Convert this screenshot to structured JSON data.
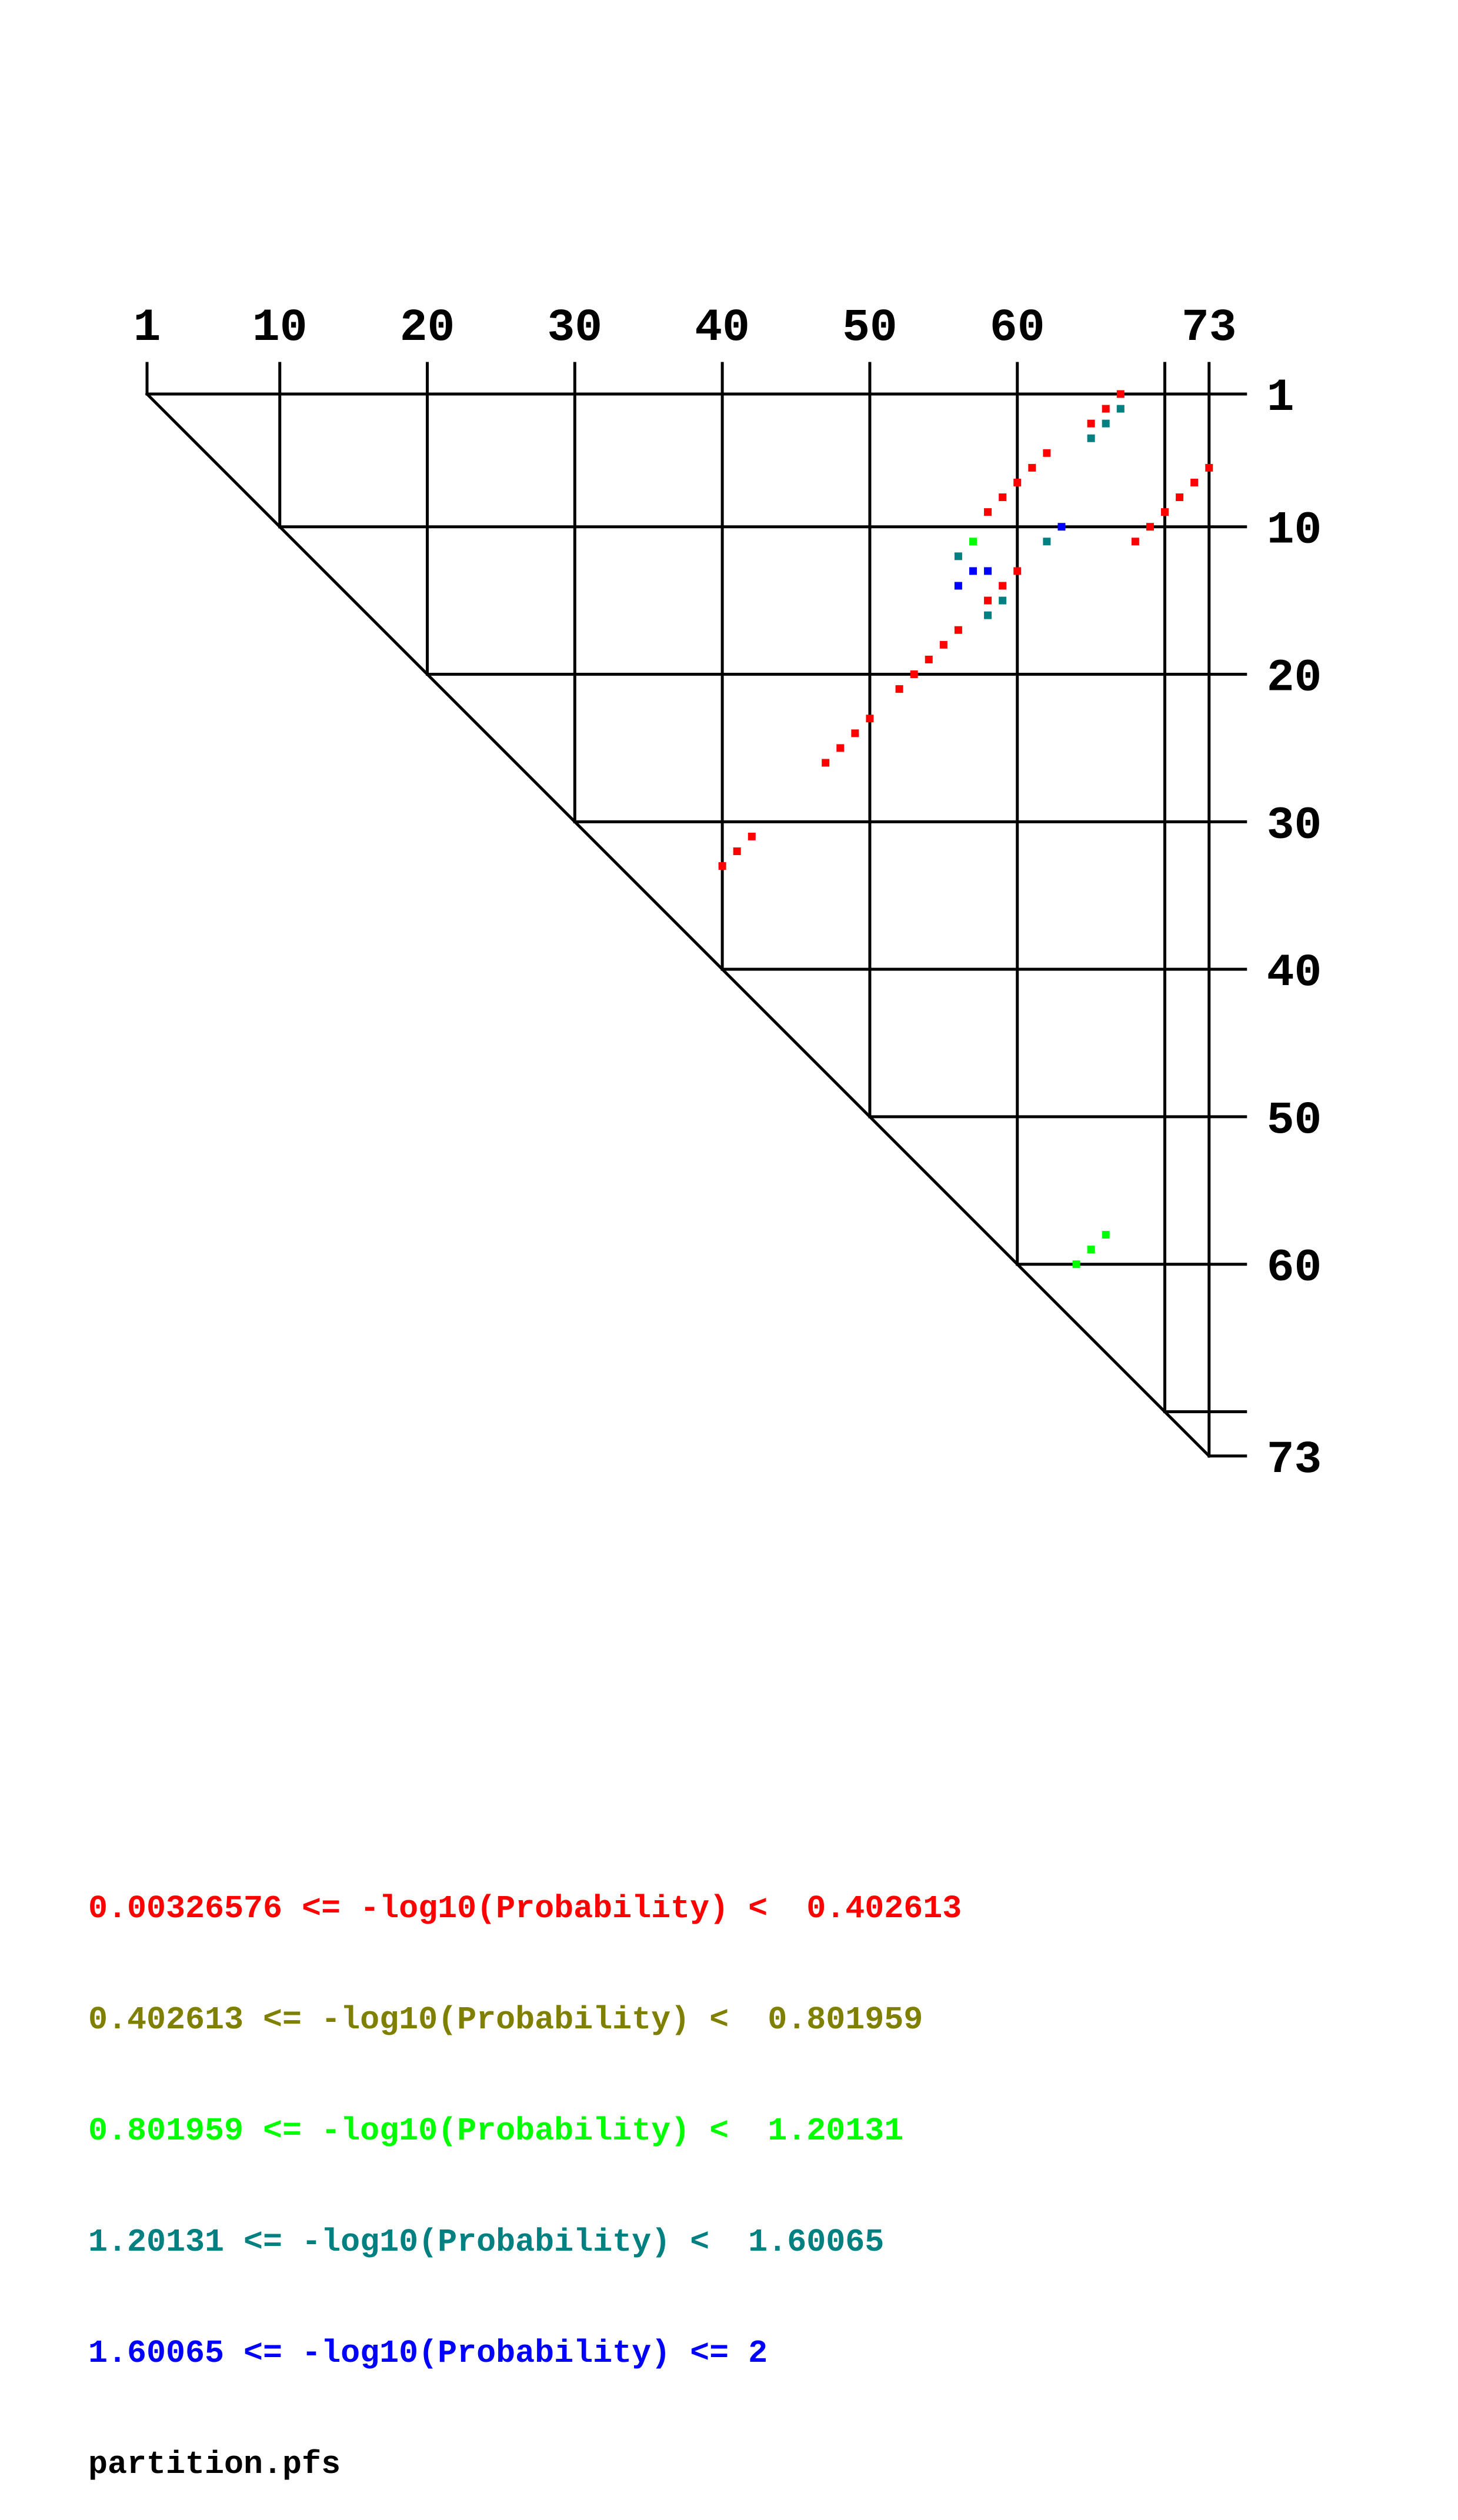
{
  "chart_data": {
    "type": "heatmap",
    "title": "",
    "sequence_length": 73,
    "x_axis": {
      "tick_labels": [
        "1",
        "10",
        "20",
        "30",
        "40",
        "50",
        "60",
        "73"
      ],
      "ticks": [
        1,
        10,
        20,
        30,
        40,
        50,
        60,
        70,
        73
      ]
    },
    "y_axis": {
      "tick_labels": [
        "1",
        "10",
        "20",
        "30",
        "40",
        "50",
        "60",
        "73"
      ],
      "ticks": [
        1,
        10,
        20,
        30,
        40,
        50,
        60,
        70,
        73
      ]
    },
    "legend": [
      {
        "label": "0.00326576 <= -log10(Probability) <  0.402613",
        "color": "#ff0000"
      },
      {
        "label": "0.402613 <= -log10(Probability) <  0.801959",
        "color": "#808000"
      },
      {
        "label": "0.801959 <= -log10(Probability) <  1.20131",
        "color": "#00ff00"
      },
      {
        "label": "1.20131 <= -log10(Probability) <  1.60065",
        "color": "#008080"
      },
      {
        "label": "1.60065 <= -log10(Probability) <= 2",
        "color": "#0000ff"
      }
    ],
    "filename": "partition.pfs",
    "points": [
      {
        "i": 1,
        "j": 67,
        "c": 0
      },
      {
        "i": 2,
        "j": 66,
        "c": 0
      },
      {
        "i": 2,
        "j": 67,
        "c": 3
      },
      {
        "i": 3,
        "j": 65,
        "c": 0
      },
      {
        "i": 3,
        "j": 66,
        "c": 3
      },
      {
        "i": 4,
        "j": 65,
        "c": 3
      },
      {
        "i": 5,
        "j": 62,
        "c": 0
      },
      {
        "i": 6,
        "j": 61,
        "c": 0
      },
      {
        "i": 7,
        "j": 60,
        "c": 0
      },
      {
        "i": 8,
        "j": 59,
        "c": 0
      },
      {
        "i": 9,
        "j": 58,
        "c": 0
      },
      {
        "i": 6,
        "j": 73,
        "c": -1
      },
      {
        "i": 7,
        "j": 72,
        "c": -1
      },
      {
        "i": 8,
        "j": 71,
        "c": -1
      },
      {
        "i": 9,
        "j": 70,
        "c": -1
      },
      {
        "i": 10,
        "j": 69,
        "c": -1
      },
      {
        "i": 11,
        "j": 68,
        "c": -1
      },
      {
        "i": 10,
        "j": 63,
        "c": 4
      },
      {
        "i": 11,
        "j": 62,
        "c": 3
      },
      {
        "i": 11,
        "j": 57,
        "c": 2
      },
      {
        "i": 12,
        "j": 56,
        "c": 3
      },
      {
        "i": 13,
        "j": 57,
        "c": 4
      },
      {
        "i": 13,
        "j": 58,
        "c": 4
      },
      {
        "i": 14,
        "j": 56,
        "c": 4
      },
      {
        "i": 13,
        "j": 60,
        "c": -1
      },
      {
        "i": 14,
        "j": 59,
        "c": -1
      },
      {
        "i": 15,
        "j": 58,
        "c": -1
      },
      {
        "i": 15,
        "j": 59,
        "c": 3
      },
      {
        "i": 16,
        "j": 58,
        "c": 3
      },
      {
        "i": 17,
        "j": 56,
        "c": -1
      },
      {
        "i": 18,
        "j": 55,
        "c": -1
      },
      {
        "i": 19,
        "j": 54,
        "c": -1
      },
      {
        "i": 20,
        "j": 53,
        "c": -1
      },
      {
        "i": 21,
        "j": 52,
        "c": -1
      },
      {
        "i": 23,
        "j": 50,
        "c": -1
      },
      {
        "i": 24,
        "j": 49,
        "c": -1
      },
      {
        "i": 25,
        "j": 48,
        "c": -1
      },
      {
        "i": 26,
        "j": 47,
        "c": -1
      },
      {
        "i": 31,
        "j": 42,
        "c": -1
      },
      {
        "i": 32,
        "j": 41,
        "c": -1
      },
      {
        "i": 33,
        "j": 40,
        "c": -1
      },
      {
        "i": 58,
        "j": 66,
        "c": 2
      },
      {
        "i": 59,
        "j": 65,
        "c": 2
      },
      {
        "i": 60,
        "j": 64,
        "c": 2
      }
    ]
  }
}
